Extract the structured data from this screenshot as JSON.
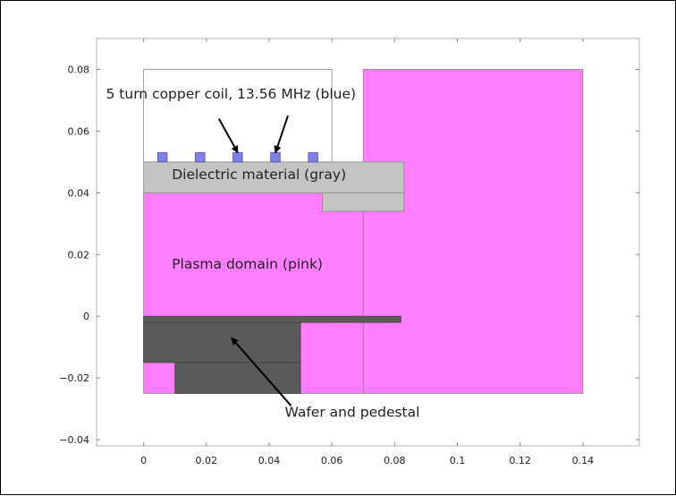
{
  "chart_data": {
    "type": "diagram",
    "xlim": [
      -0.015,
      0.158
    ],
    "ylim": [
      -0.042,
      0.09
    ],
    "x_ticks": [
      0,
      0.02,
      0.04,
      0.06,
      0.08,
      0.1,
      0.12,
      0.14
    ],
    "x_tick_labels": [
      "0",
      "0.02",
      "0.04",
      "0.06",
      "0.08",
      "0.1",
      "0.12",
      "0.14"
    ],
    "y_ticks": [
      0.08,
      0.06,
      0.04,
      0.02,
      0,
      -0.02,
      -0.04
    ],
    "y_tick_labels": [
      "0.08",
      "0.06",
      "0.04",
      "0.02",
      "0",
      "−0.02",
      "−0.04"
    ],
    "grid": false,
    "colors": {
      "plasma": "#ff7dff",
      "dielectric": "#c4c4c4",
      "coil": "#7f7fe6",
      "wafer": "#5a5a5a",
      "outline": "#8a8a8a"
    },
    "regions": [
      {
        "name": "plasma-upper-right",
        "kind": "plasma",
        "x0": 0.07,
        "x1": 0.14,
        "y0": -0.025,
        "y1": 0.08
      },
      {
        "name": "plasma-lower-left",
        "kind": "plasma",
        "x0": 0.0,
        "x1": 0.07,
        "y0": -0.025,
        "y1": 0.04
      },
      {
        "name": "dielectric-top",
        "kind": "dielectric",
        "x0": 0.0,
        "x1": 0.083,
        "y0": 0.04,
        "y1": 0.05
      },
      {
        "name": "dielectric-step",
        "kind": "dielectric",
        "x0": 0.057,
        "x1": 0.083,
        "y0": 0.034,
        "y1": 0.04
      },
      {
        "name": "wafer-strip",
        "kind": "wafer",
        "x0": 0.0,
        "x1": 0.082,
        "y0": -0.002,
        "y1": 0.0
      },
      {
        "name": "pedestal-upper",
        "kind": "wafer",
        "x0": 0.0,
        "x1": 0.05,
        "y0": -0.015,
        "y1": -0.002
      },
      {
        "name": "pedestal-lower",
        "kind": "wafer",
        "x0": 0.01,
        "x1": 0.05,
        "y0": -0.025,
        "y1": -0.015
      }
    ],
    "air_box": {
      "x0": 0.0,
      "x1": 0.06,
      "y0": 0.05,
      "y1": 0.08
    },
    "coil_turns": [
      0.006,
      0.018,
      0.03,
      0.042,
      0.054
    ],
    "coil_size": [
      0.003,
      0.003
    ],
    "coil_base_y": 0.05,
    "annotations": [
      {
        "key": "coil",
        "text": "5 turn copper coil, 13.56 MHz (blue)",
        "x": -0.012,
        "y": 0.0705
      },
      {
        "key": "dielectric",
        "text": "Dielectric material (gray)",
        "x": 0.009,
        "y": 0.0445
      },
      {
        "key": "plasma",
        "text": "Plasma domain (pink)",
        "x": 0.009,
        "y": 0.0155
      },
      {
        "key": "wafer",
        "text": "Wafer and pedestal",
        "x": 0.045,
        "y": -0.0325
      }
    ],
    "arrows": [
      {
        "name": "coil-arrow-1",
        "from": [
          0.024,
          0.064
        ],
        "to": [
          0.03,
          0.053
        ]
      },
      {
        "name": "coil-arrow-2",
        "from": [
          0.046,
          0.065
        ],
        "to": [
          0.042,
          0.053
        ]
      },
      {
        "name": "wafer-arrow",
        "from": [
          0.047,
          -0.029
        ],
        "to": [
          0.028,
          -0.007
        ]
      }
    ]
  }
}
